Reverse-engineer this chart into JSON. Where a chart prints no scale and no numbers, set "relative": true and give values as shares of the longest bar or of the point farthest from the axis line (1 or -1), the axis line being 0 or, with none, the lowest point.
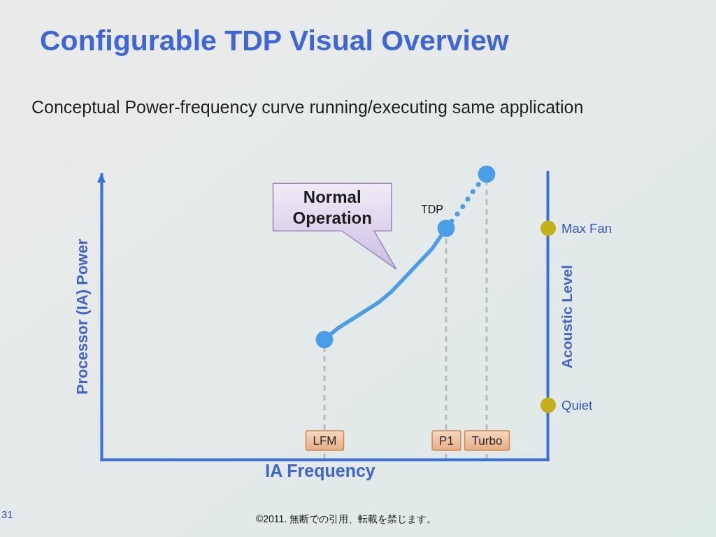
{
  "chart_data": {
    "type": "line",
    "title": "Configurable TDP Visual Overview",
    "subtitle": "Conceptual Power-frequency curve running/executing same application",
    "xlabel": "IA Frequency",
    "ylabel": "Processor (IA) Power",
    "y2label": "Acoustic Level",
    "relative": true,
    "categories": [
      null,
      null,
      null,
      null,
      null,
      null,
      null,
      null,
      null,
      null,
      null,
      null,
      null,
      null,
      null,
      null,
      "LFM",
      null,
      null,
      null,
      null,
      null,
      null,
      null,
      null,
      "P1",
      null,
      null,
      "Turbo",
      null,
      null,
      null,
      null
    ],
    "grid": "x",
    "series": [
      {
        "values": [
          null,
          null,
          null,
          null,
          null,
          null,
          null,
          null,
          null,
          null,
          null,
          null,
          null,
          null,
          null,
          null,
          0.42,
          0.46,
          0.49,
          0.52,
          0.55,
          0.59,
          0.64,
          0.69,
          0.74,
          0.81,
          null,
          null,
          null,
          null,
          null,
          null,
          null
        ],
        "color": "#4a9ee8",
        "line_style": "solid",
        "marker": "none"
      },
      {
        "values": [
          null,
          null,
          null,
          null,
          null,
          null,
          null,
          null,
          null,
          null,
          null,
          null,
          null,
          null,
          null,
          null,
          null,
          null,
          null,
          null,
          null,
          null,
          null,
          null,
          null,
          0.81,
          0.87,
          0.94,
          1,
          null,
          null,
          null,
          null
        ],
        "color": "#4a9ee8",
        "line_style": "dotted",
        "marker": "none"
      },
      {
        "type": "scatter",
        "values": [
          null,
          null,
          null,
          null,
          null,
          null,
          null,
          null,
          null,
          null,
          null,
          null,
          null,
          null,
          null,
          null,
          0.42,
          null,
          null,
          null,
          null,
          null,
          null,
          null,
          null,
          0.81,
          null,
          null,
          1,
          null,
          null,
          null,
          null
        ],
        "color": "#4a9ee8",
        "marker": "circle"
      }
    ],
    "annotations": [
      "Normal Operation",
      {
        "text": "TDP",
        "x": "P1",
        "y": 0.81
      },
      "Quiet",
      "Max Fan",
      "31",
      "©2011. 無断での引用、転載を禁じます。"
    ]
  }
}
